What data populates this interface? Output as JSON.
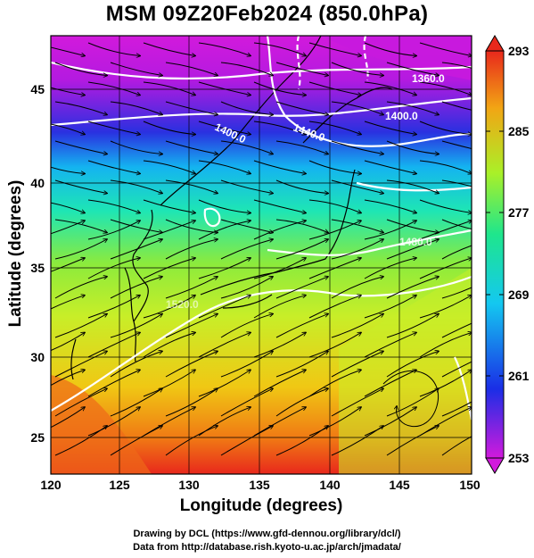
{
  "title": "MSM 09Z20Feb2024 (850.0hPa)",
  "xlabel": "Longitude (degrees)",
  "ylabel": "Latitude  (degrees)",
  "credits": [
    "Drawing by DCL (https://www.gfd-dennou.org/library/dcl/)",
    "Data from http://database.rish.kyoto-u.ac.jp/arch/jmadata/"
  ],
  "chart_data": {
    "type": "heatmap",
    "xlim": [
      120,
      150
    ],
    "ylim": [
      22.4,
      47.6
    ],
    "xticks": [
      "120",
      "125",
      "130",
      "135",
      "140",
      "145",
      "150"
    ],
    "yticks": [
      "25",
      "30",
      "35",
      "40",
      "45"
    ],
    "grid": true,
    "colorbar": {
      "min": 253,
      "max": 293,
      "ticks": [
        "253",
        "261",
        "269",
        "277",
        "285",
        "293"
      ],
      "colors": [
        "#d21adc",
        "#1a2ee6",
        "#14c8f0",
        "#1ee68c",
        "#aaf028",
        "#f2a514",
        "#e8281c"
      ]
    },
    "contour_labels": [
      "1360.0",
      "1400.0",
      "1440.0",
      "1400.0",
      "1480.0",
      "1520.0",
      "1480.0"
    ],
    "colors": {
      "contour": "#ffffff",
      "streamline": "#000000",
      "coastline": "#000000"
    }
  }
}
